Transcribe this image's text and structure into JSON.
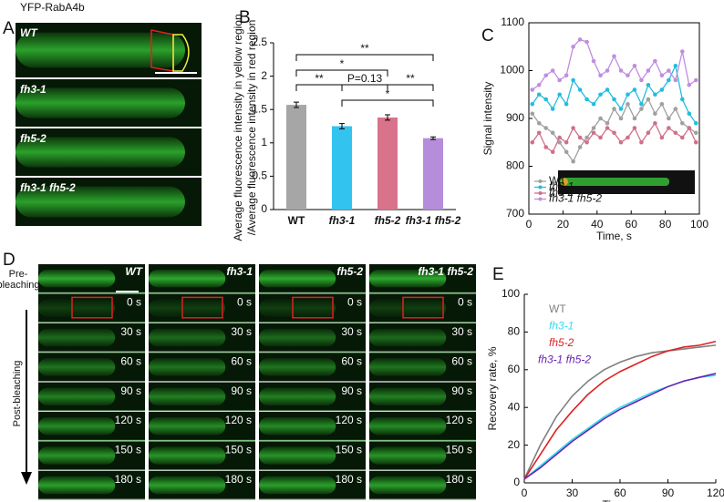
{
  "figure": {
    "panel_A": {
      "letter": "A",
      "title": "YFP-RabA4b",
      "image_labels": [
        "WT",
        "fh3-1",
        "fh5-2",
        "fh3-1 fh5-2"
      ]
    },
    "panel_D": {
      "letter": "D",
      "pre_label": [
        "Pre-",
        "bleaching"
      ],
      "post_label": "Post-bleaching",
      "columns": [
        "WT",
        "fh3-1",
        "fh5-2",
        "fh3-1 fh5-2"
      ],
      "times": [
        "0 s",
        "30 s",
        "60 s",
        "90 s",
        "120 s",
        "150 s",
        "180 s"
      ]
    }
  },
  "chart_data": [
    {
      "panel": "B",
      "type": "bar",
      "ylabel": [
        "Average fluorescence intensity in yellow region",
        "/Average fluorescence intensity in red region"
      ],
      "categories": [
        "WT",
        "fh3-1",
        "fh5-2",
        "fh3-1 fh5-2"
      ],
      "values": [
        1.57,
        1.25,
        1.38,
        1.07
      ],
      "errors": [
        0.04,
        0.04,
        0.04,
        0.02
      ],
      "colors": [
        "#a6a6a6",
        "#33c3ef",
        "#d9738b",
        "#b58ddb"
      ],
      "ylim": [
        0,
        2.5
      ],
      "yticks": [
        0,
        0.5,
        1,
        1.5,
        2,
        2.5
      ],
      "annotations": [
        "**",
        "*",
        "**",
        "P=0.13",
        "**",
        "*"
      ]
    },
    {
      "panel": "C",
      "type": "line",
      "markers": true,
      "xlabel": "Time, s",
      "ylabel": "Signal intensity",
      "x": [
        2,
        6,
        10,
        14,
        18,
        22,
        26,
        30,
        34,
        38,
        42,
        46,
        50,
        54,
        58,
        62,
        66,
        70,
        74,
        78,
        82,
        86,
        90,
        94,
        98
      ],
      "xlim": [
        0,
        100
      ],
      "xticks": [
        0,
        20,
        40,
        60,
        80,
        100
      ],
      "ylim": [
        700,
        1100
      ],
      "yticks": [
        700,
        800,
        900,
        1000,
        1100
      ],
      "series": [
        {
          "name": "WT",
          "color": "#a0a0a0",
          "values": [
            910,
            890,
            880,
            870,
            850,
            830,
            810,
            840,
            860,
            880,
            900,
            890,
            920,
            900,
            930,
            900,
            920,
            940,
            910,
            930,
            900,
            920,
            890,
            880,
            870
          ]
        },
        {
          "name": "fh3-1",
          "color": "#22bde0",
          "values": [
            930,
            950,
            940,
            920,
            950,
            930,
            980,
            960,
            940,
            930,
            950,
            960,
            940,
            920,
            950,
            960,
            930,
            970,
            950,
            960,
            980,
            1010,
            940,
            910,
            890
          ]
        },
        {
          "name": "fh5-2",
          "color": "#d0708a",
          "values": [
            850,
            870,
            840,
            830,
            860,
            850,
            880,
            860,
            850,
            870,
            860,
            880,
            870,
            850,
            860,
            880,
            850,
            870,
            890,
            860,
            880,
            870,
            860,
            880,
            850
          ]
        },
        {
          "name": "fh3-1 fh5-2",
          "color": "#c08de0",
          "values": [
            960,
            970,
            990,
            1000,
            980,
            990,
            1050,
            1065,
            1060,
            1020,
            990,
            1000,
            1030,
            1000,
            990,
            1010,
            980,
            1000,
            1020,
            990,
            1000,
            980,
            1040,
            970,
            980
          ]
        }
      ]
    },
    {
      "panel": "E",
      "type": "line",
      "markers": false,
      "xlabel": "Time, s",
      "ylabel": "Recovery rate, %",
      "x": [
        0,
        10,
        20,
        30,
        40,
        50,
        60,
        70,
        80,
        90,
        100,
        110,
        120
      ],
      "xlim": [
        0,
        120
      ],
      "xticks": [
        0,
        30,
        60,
        90,
        120
      ],
      "ylim": [
        0,
        100
      ],
      "yticks": [
        0,
        20,
        40,
        60,
        80,
        100
      ],
      "series": [
        {
          "name": "WT",
          "color": "#808080",
          "values": [
            2,
            20,
            35,
            46,
            54,
            60,
            64,
            67,
            69,
            70,
            71,
            72,
            73
          ]
        },
        {
          "name": "fh3-1",
          "color": "#33ddee",
          "values": [
            2,
            9,
            16,
            23,
            29,
            35,
            40,
            44,
            48,
            51,
            54,
            56,
            57
          ]
        },
        {
          "name": "fh5-2",
          "color": "#dd2222",
          "values": [
            2,
            15,
            28,
            38,
            47,
            54,
            59,
            63,
            67,
            70,
            72,
            73,
            75
          ]
        },
        {
          "name": "fh3-1 fh5-2",
          "color": "#6a22b0",
          "values": [
            2,
            8,
            15,
            22,
            28,
            34,
            39,
            43,
            47,
            51,
            54,
            56,
            58
          ]
        }
      ]
    }
  ]
}
